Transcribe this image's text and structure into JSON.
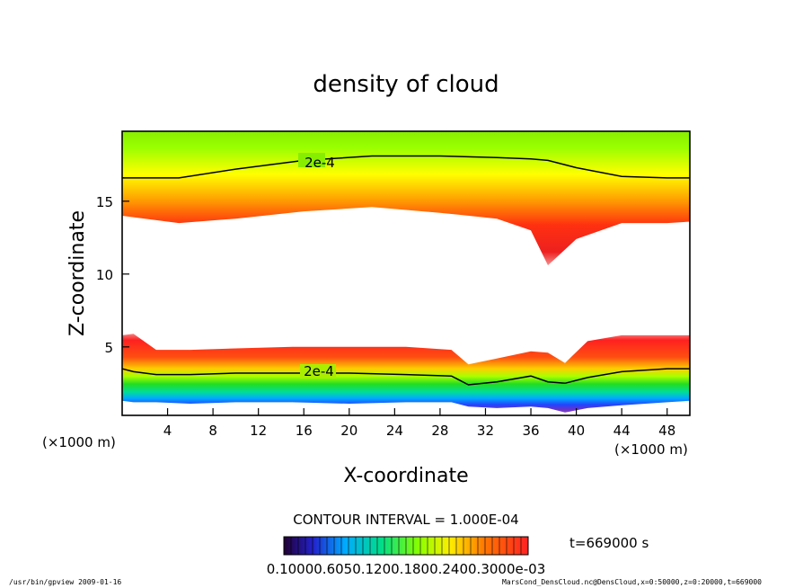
{
  "chart_data": {
    "type": "heatmap",
    "title": "density of cloud",
    "xlabel": "X-coordinate",
    "ylabel": "Z-coordinate",
    "xunit": "(×1000 m)",
    "zunit": "(×1000 m)",
    "xlim": [
      0,
      50
    ],
    "ylim": [
      0.3,
      19.8
    ],
    "xticks": [
      4,
      8,
      12,
      16,
      20,
      24,
      28,
      32,
      36,
      40,
      44,
      48
    ],
    "yticks": [
      5,
      10,
      15
    ],
    "contour_label_upper": "2e-4",
    "contour_label_lower": "2e-4",
    "contour_interval": "CONTOUR INTERVAL = 1.000E-04",
    "colorbar_labels": "0.10000.6050.1200.1800.2400.3000e-03",
    "time": "t=669000 s",
    "upper_layer": {
      "x": [
        0,
        5,
        10,
        16,
        22,
        28,
        33,
        36,
        37.5,
        40,
        44,
        48,
        50
      ],
      "top": [
        19.8,
        19.8,
        19.8,
        19.8,
        19.8,
        19.8,
        19.8,
        19.8,
        19.8,
        19.8,
        19.8,
        19.8,
        19.8
      ],
      "bottom": [
        14.0,
        13.5,
        13.8,
        14.3,
        14.6,
        14.2,
        13.8,
        13.0,
        10.6,
        12.4,
        13.5,
        13.5,
        13.6
      ],
      "contour_2e4": [
        16.6,
        16.6,
        17.2,
        17.8,
        18.1,
        18.1,
        18.0,
        17.9,
        17.8,
        17.3,
        16.7,
        16.6,
        16.6
      ]
    },
    "lower_layer": {
      "x": [
        0,
        1,
        3,
        6,
        10,
        15,
        20,
        25,
        29,
        30.5,
        33,
        36,
        37.5,
        39,
        41,
        44,
        48,
        50
      ],
      "top": [
        5.8,
        5.9,
        4.8,
        4.8,
        4.9,
        5.0,
        5.0,
        5.0,
        4.8,
        3.8,
        4.2,
        4.7,
        4.6,
        3.9,
        5.4,
        5.8,
        5.8,
        5.8
      ],
      "bottom": [
        1.3,
        1.2,
        1.2,
        1.1,
        1.2,
        1.2,
        1.1,
        1.2,
        1.2,
        0.9,
        0.8,
        0.9,
        0.8,
        0.5,
        0.8,
        1.0,
        1.2,
        1.3
      ],
      "contour_2e4": [
        3.5,
        3.3,
        3.1,
        3.1,
        3.2,
        3.2,
        3.2,
        3.1,
        3.0,
        2.4,
        2.6,
        3.0,
        2.6,
        2.5,
        2.9,
        3.3,
        3.5,
        3.5
      ]
    }
  },
  "footer": {
    "left": "/usr/bin/gpview  2009-01-16",
    "right": "MarsCond_DensCloud.nc@DensCloud,x=0:50000,z=0:20000,t=669000"
  },
  "colors": {
    "frame": "#000000",
    "background": "#ffffff"
  }
}
